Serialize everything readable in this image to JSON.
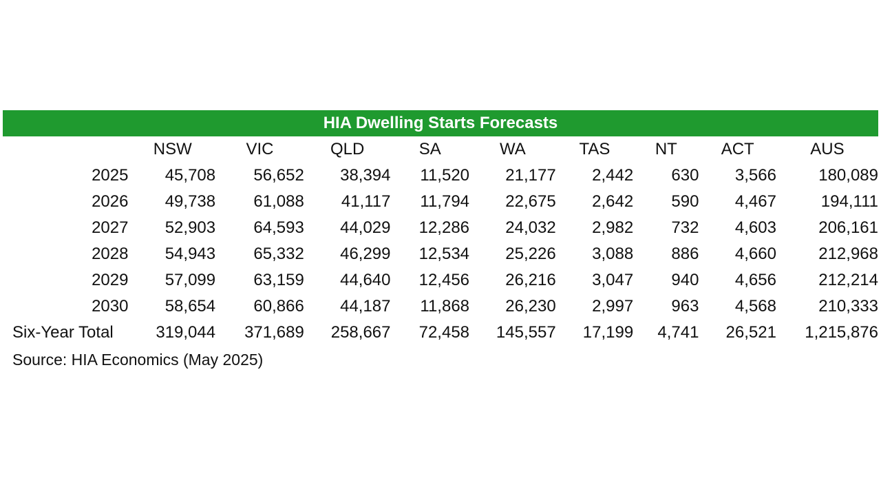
{
  "title": "HIA Dwelling Starts Forecasts",
  "columns": [
    "NSW",
    "VIC",
    "QLD",
    "SA",
    "WA",
    "TAS",
    "NT",
    "ACT",
    "AUS"
  ],
  "rows": [
    {
      "label": "2025",
      "values": [
        "45,708",
        "56,652",
        "38,394",
        "11,520",
        "21,177",
        "2,442",
        "630",
        "3,566",
        "180,089"
      ]
    },
    {
      "label": "2026",
      "values": [
        "49,738",
        "61,088",
        "41,117",
        "11,794",
        "22,675",
        "2,642",
        "590",
        "4,467",
        "194,111"
      ]
    },
    {
      "label": "2027",
      "values": [
        "52,903",
        "64,593",
        "44,029",
        "12,286",
        "24,032",
        "2,982",
        "732",
        "4,603",
        "206,161"
      ]
    },
    {
      "label": "2028",
      "values": [
        "54,943",
        "65,332",
        "46,299",
        "12,534",
        "25,226",
        "3,088",
        "886",
        "4,660",
        "212,968"
      ]
    },
    {
      "label": "2029",
      "values": [
        "57,099",
        "63,159",
        "44,640",
        "12,456",
        "26,216",
        "3,047",
        "940",
        "4,656",
        "212,214"
      ]
    },
    {
      "label": "2030",
      "values": [
        "58,654",
        "60,866",
        "44,187",
        "11,868",
        "26,230",
        "2,997",
        "963",
        "4,568",
        "210,333"
      ]
    }
  ],
  "total": {
    "label": "Six-Year Total",
    "values": [
      "319,044",
      "371,689",
      "258,667",
      "72,458",
      "145,557",
      "17,199",
      "4,741",
      "26,521",
      "1,215,876"
    ]
  },
  "source": "Source: HIA Economics (May 2025)",
  "colors": {
    "title_bar": "#1f9a2f",
    "title_text": "#ffffff"
  }
}
